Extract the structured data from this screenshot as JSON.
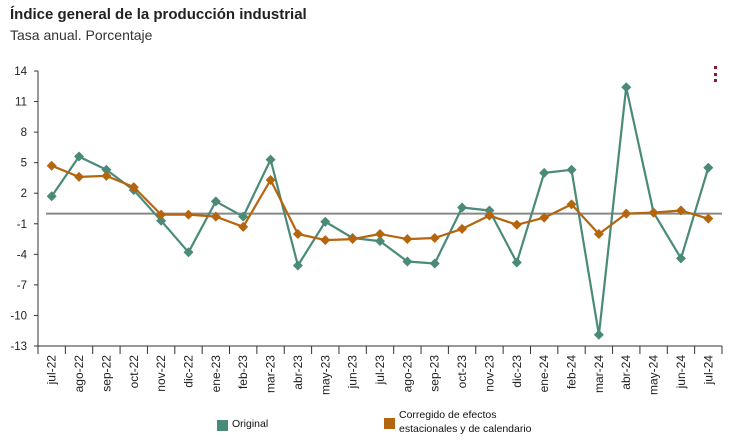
{
  "title": "Índice general de la producción industrial",
  "subtitle": "Tasa anual. Porcentaje",
  "menu_icon": "more-vertical-icon",
  "colors": {
    "original": "#4a8a78",
    "corregido": "#b5650d",
    "zero_line": "#888888",
    "axis": "#333333"
  },
  "legend": {
    "original": "Original",
    "corregido_line1": "Corregido de efectos",
    "corregido_line2": "estacionales y de calendario"
  },
  "chart_data": {
    "type": "line",
    "categories": [
      "jul-22",
      "ago-22",
      "sep-22",
      "oct-22",
      "nov-22",
      "dic-22",
      "ene-23",
      "feb-23",
      "mar-23",
      "abr-23",
      "may-23",
      "jun-23",
      "jul-23",
      "ago-23",
      "sep-23",
      "oct-23",
      "nov-23",
      "dic-23",
      "ene-24",
      "feb-24",
      "mar-24",
      "abr-24",
      "may-24",
      "jun-24",
      "jul-24"
    ],
    "tick_labels": [
      "jul-22",
      "ago-22",
      "sep-22",
      "oct-22",
      "nov-22",
      "dic-22",
      "ene-23",
      "feb-23",
      "mar-23",
      "abr-23",
      "may-23",
      "jun-23",
      "jul-23",
      "ago-23",
      "sep-23",
      "oct-23",
      "nov-23",
      "dic-23",
      "ene-24",
      "feb-24",
      "mar-24",
      "abr-24",
      "may-24",
      "jun-24",
      "jul-24"
    ],
    "series": [
      {
        "name": "Original",
        "marker": "diamond",
        "values": [
          1.7,
          5.6,
          4.3,
          2.3,
          -0.7,
          -3.8,
          1.2,
          -0.3,
          5.3,
          -5.1,
          -0.8,
          -2.4,
          -2.7,
          -4.7,
          -4.9,
          0.6,
          0.3,
          -4.8,
          4.0,
          4.3,
          -11.9,
          12.4,
          0.1,
          -4.4,
          4.5
        ]
      },
      {
        "name": "Corregido de efectos estacionales y de calendario",
        "marker": "diamond",
        "values": [
          4.7,
          3.6,
          3.7,
          2.6,
          -0.1,
          -0.1,
          -0.3,
          -1.3,
          3.3,
          -2.0,
          -2.6,
          -2.5,
          -2.0,
          -2.5,
          -2.4,
          -1.5,
          -0.2,
          -1.1,
          -0.4,
          0.9,
          -2.0,
          0.0,
          0.1,
          0.3,
          -0.5
        ]
      }
    ],
    "yticks": [
      14,
      11,
      8,
      5,
      2,
      -1,
      -4,
      -7,
      -10,
      -13
    ],
    "ylim": [
      -13,
      14
    ],
    "zero_line": 0
  }
}
